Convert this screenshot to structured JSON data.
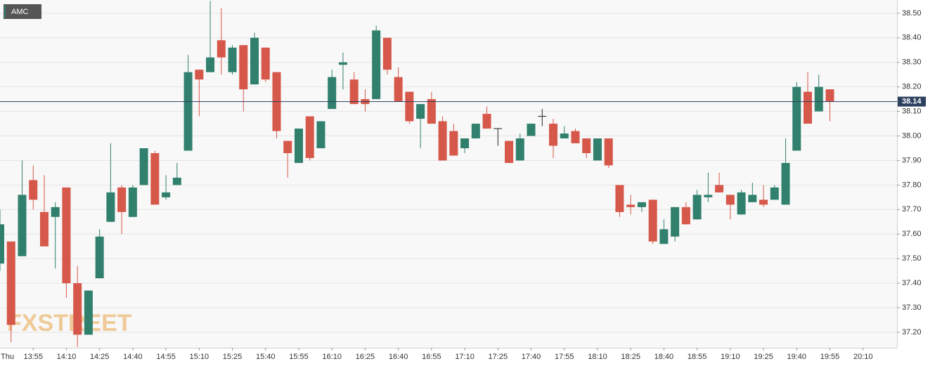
{
  "chart_data": {
    "type": "candlestick",
    "legend": "AMC",
    "watermark": "FXSTREET",
    "up_color": "#31806e",
    "down_color": "#d6584a",
    "doji_color": "#222222",
    "categories": [
      "Thu",
      null,
      null,
      "13:55",
      null,
      null,
      "14:10",
      null,
      null,
      "14:25",
      null,
      null,
      "14:40",
      null,
      null,
      "14:55",
      null,
      null,
      "15:10",
      null,
      null,
      "15:25",
      null,
      null,
      "15:40",
      null,
      null,
      "15:55",
      null,
      null,
      "16:10",
      null,
      null,
      "16:25",
      null,
      null,
      "16:40",
      null,
      null,
      "16:55",
      null,
      null,
      "17:10",
      null,
      null,
      "17:25",
      null,
      null,
      "17:40",
      null,
      null,
      "17:55",
      null,
      null,
      "18:10",
      null,
      null,
      "18:25",
      null,
      null,
      "18:40",
      null,
      null,
      "18:55",
      null,
      null,
      "19:10",
      null,
      null,
      "19:25",
      null,
      null,
      "19:40",
      null,
      null,
      "19:55",
      null,
      null,
      "20:10"
    ],
    "open": [
      37.48,
      37.57,
      37.51,
      37.82,
      37.69,
      37.67,
      37.79,
      37.4,
      37.19,
      37.42,
      37.65,
      37.79,
      37.67,
      37.8,
      37.93,
      37.75,
      37.8,
      37.94,
      38.27,
      38.26,
      38.39,
      38.26,
      38.37,
      38.21,
      38.36,
      38.26,
      37.98,
      37.89,
      38.08,
      37.95,
      38.11,
      38.29,
      38.23,
      38.15,
      38.15,
      38.4,
      38.24,
      38.18,
      38.07,
      38.15,
      38.06,
      38.02,
      37.95,
      37.99,
      38.09,
      38.03,
      37.98,
      37.9,
      38.0,
      38.08,
      38.05,
      37.99,
      38.02,
      37.99,
      37.9,
      37.99,
      37.8,
      37.72,
      37.71,
      37.74,
      37.56,
      37.59,
      37.71,
      37.66,
      37.75,
      37.8,
      37.76,
      37.68,
      37.73,
      37.74,
      37.74,
      37.72,
      37.94,
      38.18,
      38.1,
      38.19,
      null,
      null,
      null
    ],
    "high": [
      37.7,
      37.57,
      37.9,
      37.88,
      37.84,
      37.73,
      37.79,
      37.47,
      37.37,
      37.62,
      37.97,
      37.8,
      37.8,
      37.95,
      37.94,
      37.84,
      37.89,
      38.33,
      38.27,
      38.55,
      38.52,
      38.37,
      38.37,
      38.42,
      38.36,
      38.26,
      37.98,
      38.03,
      38.08,
      38.06,
      38.27,
      38.34,
      38.26,
      38.19,
      38.45,
      38.4,
      38.28,
      38.18,
      38.13,
      38.18,
      38.08,
      38.05,
      37.99,
      38.05,
      38.12,
      38.03,
      37.98,
      38.01,
      38.05,
      38.11,
      38.07,
      38.04,
      38.03,
      37.99,
      37.99,
      37.99,
      37.8,
      37.76,
      37.73,
      37.74,
      37.66,
      37.71,
      37.73,
      37.78,
      37.85,
      37.85,
      37.76,
      37.78,
      37.81,
      37.8,
      37.8,
      37.99,
      38.22,
      38.26,
      38.25,
      38.19,
      null,
      null,
      null
    ],
    "low": [
      37.45,
      37.16,
      37.51,
      37.7,
      37.55,
      37.46,
      37.34,
      37.14,
      37.19,
      37.42,
      37.65,
      37.6,
      37.67,
      37.8,
      37.72,
      37.74,
      37.8,
      37.94,
      38.08,
      38.26,
      38.25,
      38.25,
      38.1,
      38.21,
      38.22,
      37.99,
      37.83,
      37.89,
      37.9,
      37.95,
      38.11,
      38.19,
      38.13,
      38.1,
      38.15,
      38.25,
      38.14,
      38.05,
      37.95,
      38.05,
      37.9,
      37.92,
      37.93,
      37.99,
      38.03,
      37.96,
      37.89,
      37.9,
      38.0,
      38.04,
      37.91,
      37.99,
      37.97,
      37.91,
      37.9,
      37.87,
      37.67,
      37.68,
      37.69,
      37.56,
      37.56,
      37.57,
      37.64,
      37.66,
      37.73,
      37.77,
      37.66,
      37.68,
      37.73,
      37.71,
      37.74,
      37.72,
      37.94,
      38.05,
      38.1,
      38.06,
      null,
      null,
      null
    ],
    "close": [
      37.64,
      37.23,
      37.76,
      37.74,
      37.55,
      37.71,
      37.4,
      37.19,
      37.37,
      37.59,
      37.77,
      37.69,
      37.79,
      37.95,
      37.72,
      37.77,
      37.83,
      38.26,
      38.23,
      38.32,
      38.32,
      38.36,
      38.19,
      38.4,
      38.23,
      38.02,
      37.93,
      38.03,
      37.91,
      38.06,
      38.24,
      38.3,
      38.13,
      38.13,
      38.43,
      38.27,
      38.14,
      38.06,
      38.13,
      38.05,
      37.9,
      37.92,
      37.99,
      38.05,
      38.03,
      38.03,
      37.89,
      37.99,
      38.05,
      38.08,
      37.96,
      38.01,
      37.97,
      37.93,
      37.99,
      37.88,
      37.69,
      37.71,
      37.73,
      37.57,
      37.62,
      37.71,
      37.64,
      37.76,
      37.76,
      37.77,
      37.72,
      37.77,
      37.76,
      37.72,
      37.79,
      37.89,
      38.2,
      38.05,
      38.2,
      38.14,
      null,
      null,
      null
    ],
    "last_price": 38.14,
    "last_price_color": "#2b3f5e",
    "ylim": [
      37.137,
      38.554
    ],
    "yticks": [
      {
        "value": 37.2,
        "label": "37.20"
      },
      {
        "value": 37.3,
        "label": "37.30"
      },
      {
        "value": 37.4,
        "label": "37.40"
      },
      {
        "value": 37.5,
        "label": "37.50"
      },
      {
        "value": 37.6,
        "label": "37.60"
      },
      {
        "value": 37.7,
        "label": "37.70"
      },
      {
        "value": 37.8,
        "label": "37.80"
      },
      {
        "value": 37.9,
        "label": "37.90"
      },
      {
        "value": 38.0,
        "label": "38.00"
      },
      {
        "value": 38.1,
        "label": "38.10"
      },
      {
        "value": 38.2,
        "label": "38.20"
      },
      {
        "value": 38.3,
        "label": "38.30"
      },
      {
        "value": 38.4,
        "label": "38.40"
      },
      {
        "value": 38.5,
        "label": "38.50"
      }
    ],
    "grid": true
  }
}
